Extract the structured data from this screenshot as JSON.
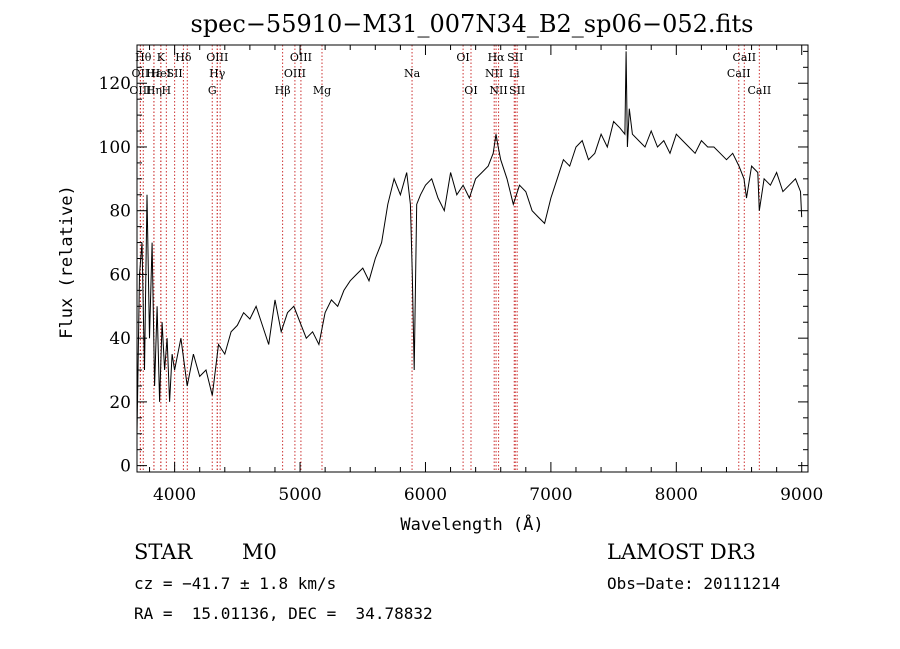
{
  "chart_data": {
    "type": "line",
    "title": "spec−55910−M31_007N34_B2_sp06−052.fits",
    "xlabel": "Wavelength (Å)",
    "ylabel": "Flux (relative)",
    "xlim": [
      3700,
      9050
    ],
    "ylim": [
      -2,
      132
    ],
    "xticks": [
      4000,
      5000,
      6000,
      7000,
      8000,
      9000
    ],
    "xtick_labels": [
      "4000",
      "5000",
      "6000",
      "7000",
      "8000",
      "9000"
    ],
    "yticks": [
      0,
      20,
      40,
      60,
      80,
      100,
      120
    ],
    "ytick_labels": [
      "0",
      "20",
      "40",
      "60",
      "80",
      "100",
      "120"
    ],
    "grid": false,
    "line_color": "#000000",
    "marker_color": "#cc3333",
    "series": [
      {
        "x": [
          3700,
          3720,
          3740,
          3760,
          3780,
          3800,
          3820,
          3840,
          3860,
          3880,
          3900,
          3920,
          3940,
          3960,
          3980,
          4000,
          4050,
          4100,
          4150,
          4200,
          4250,
          4300,
          4350,
          4400,
          4450,
          4500,
          4550,
          4600,
          4650,
          4700,
          4750,
          4800,
          4850,
          4900,
          4950,
          5000,
          5050,
          5100,
          5150,
          5200,
          5250,
          5300,
          5350,
          5400,
          5450,
          5500,
          5550,
          5600,
          5650,
          5700,
          5750,
          5800,
          5850,
          5880,
          5895,
          5910,
          5930,
          5960,
          6000,
          6050,
          6100,
          6150,
          6200,
          6250,
          6300,
          6350,
          6400,
          6450,
          6500,
          6540,
          6562,
          6580,
          6600,
          6650,
          6700,
          6750,
          6800,
          6850,
          6900,
          6950,
          7000,
          7050,
          7100,
          7150,
          7200,
          7250,
          7300,
          7350,
          7400,
          7450,
          7500,
          7550,
          7590,
          7600,
          7610,
          7625,
          7650,
          7700,
          7750,
          7800,
          7850,
          7900,
          7950,
          8000,
          8050,
          8100,
          8150,
          8200,
          8250,
          8300,
          8350,
          8400,
          8450,
          8500,
          8540,
          8560,
          8600,
          8650,
          8662,
          8700,
          8750,
          8800,
          8850,
          8900,
          8950,
          8990,
          9000
        ],
        "y": [
          10,
          60,
          70,
          30,
          85,
          40,
          70,
          25,
          50,
          20,
          45,
          30,
          40,
          20,
          35,
          30,
          40,
          25,
          35,
          28,
          30,
          22,
          38,
          35,
          42,
          44,
          48,
          46,
          50,
          44,
          38,
          52,
          42,
          48,
          50,
          45,
          40,
          42,
          38,
          48,
          52,
          50,
          55,
          58,
          60,
          62,
          58,
          65,
          70,
          82,
          90,
          85,
          92,
          82,
          60,
          30,
          82,
          85,
          88,
          90,
          84,
          80,
          92,
          85,
          88,
          84,
          90,
          92,
          94,
          98,
          104,
          100,
          96,
          90,
          82,
          88,
          86,
          80,
          78,
          76,
          84,
          90,
          96,
          94,
          100,
          102,
          96,
          98,
          104,
          100,
          108,
          106,
          104,
          130,
          100,
          112,
          104,
          102,
          100,
          105,
          100,
          102,
          98,
          104,
          102,
          100,
          98,
          102,
          100,
          100,
          98,
          96,
          98,
          94,
          90,
          84,
          94,
          92,
          80,
          90,
          88,
          92,
          86,
          88,
          90,
          86,
          78
        ]
      }
    ],
    "line_markers": [
      {
        "x": 3750,
        "label": "Hθ",
        "row": 0
      },
      {
        "x": 3727,
        "label": "OII",
        "row": 1
      },
      {
        "x": 3727,
        "label": "OIII",
        "row": 2
      },
      {
        "x": 3835,
        "label": "Hε",
        "row": 1
      },
      {
        "x": 3835,
        "label": "Hη",
        "row": 2
      },
      {
        "x": 3890,
        "label": "K",
        "row": 0
      },
      {
        "x": 3890,
        "label": "HeI",
        "row": 1
      },
      {
        "x": 3934,
        "label": "H",
        "row": 2
      },
      {
        "x": 4000,
        "label": "SII",
        "row": 1
      },
      {
        "x": 4070,
        "label": "Hδ",
        "row": 0
      },
      {
        "x": 4101,
        "label": "",
        "row": 0
      },
      {
        "x": 4300,
        "label": "G",
        "row": 2
      },
      {
        "x": 4340,
        "label": "OIII",
        "row": 0
      },
      {
        "x": 4340,
        "label": "Hγ",
        "row": 1
      },
      {
        "x": 4363,
        "label": "",
        "row": 0
      },
      {
        "x": 4861,
        "label": "Hβ",
        "row": 2
      },
      {
        "x": 4959,
        "label": "OIII",
        "row": 1
      },
      {
        "x": 5007,
        "label": "OIII",
        "row": 0
      },
      {
        "x": 5175,
        "label": "Mg",
        "row": 2
      },
      {
        "x": 5893,
        "label": "Na",
        "row": 1
      },
      {
        "x": 6300,
        "label": "OI",
        "row": 0
      },
      {
        "x": 6363,
        "label": "OI",
        "row": 2
      },
      {
        "x": 6548,
        "label": "NII",
        "row": 1
      },
      {
        "x": 6563,
        "label": "Hα",
        "row": 0
      },
      {
        "x": 6583,
        "label": "NII",
        "row": 2
      },
      {
        "x": 6716,
        "label": "SII",
        "row": 0
      },
      {
        "x": 6708,
        "label": "Li",
        "row": 1
      },
      {
        "x": 6731,
        "label": "SII",
        "row": 2
      },
      {
        "x": 8498,
        "label": "CaII",
        "row": 1
      },
      {
        "x": 8542,
        "label": "CaII",
        "row": 0
      },
      {
        "x": 8662,
        "label": "CaII",
        "row": 2
      }
    ]
  },
  "footer": {
    "object_type": "STAR",
    "subclass": "M0",
    "survey": "LAMOST DR3",
    "cz": "cz = −41.7 ± 1.8 km/s",
    "obs_date": "Obs−Date: 20111214",
    "radec": "RA =  15.01136, DEC =  34.78832"
  }
}
